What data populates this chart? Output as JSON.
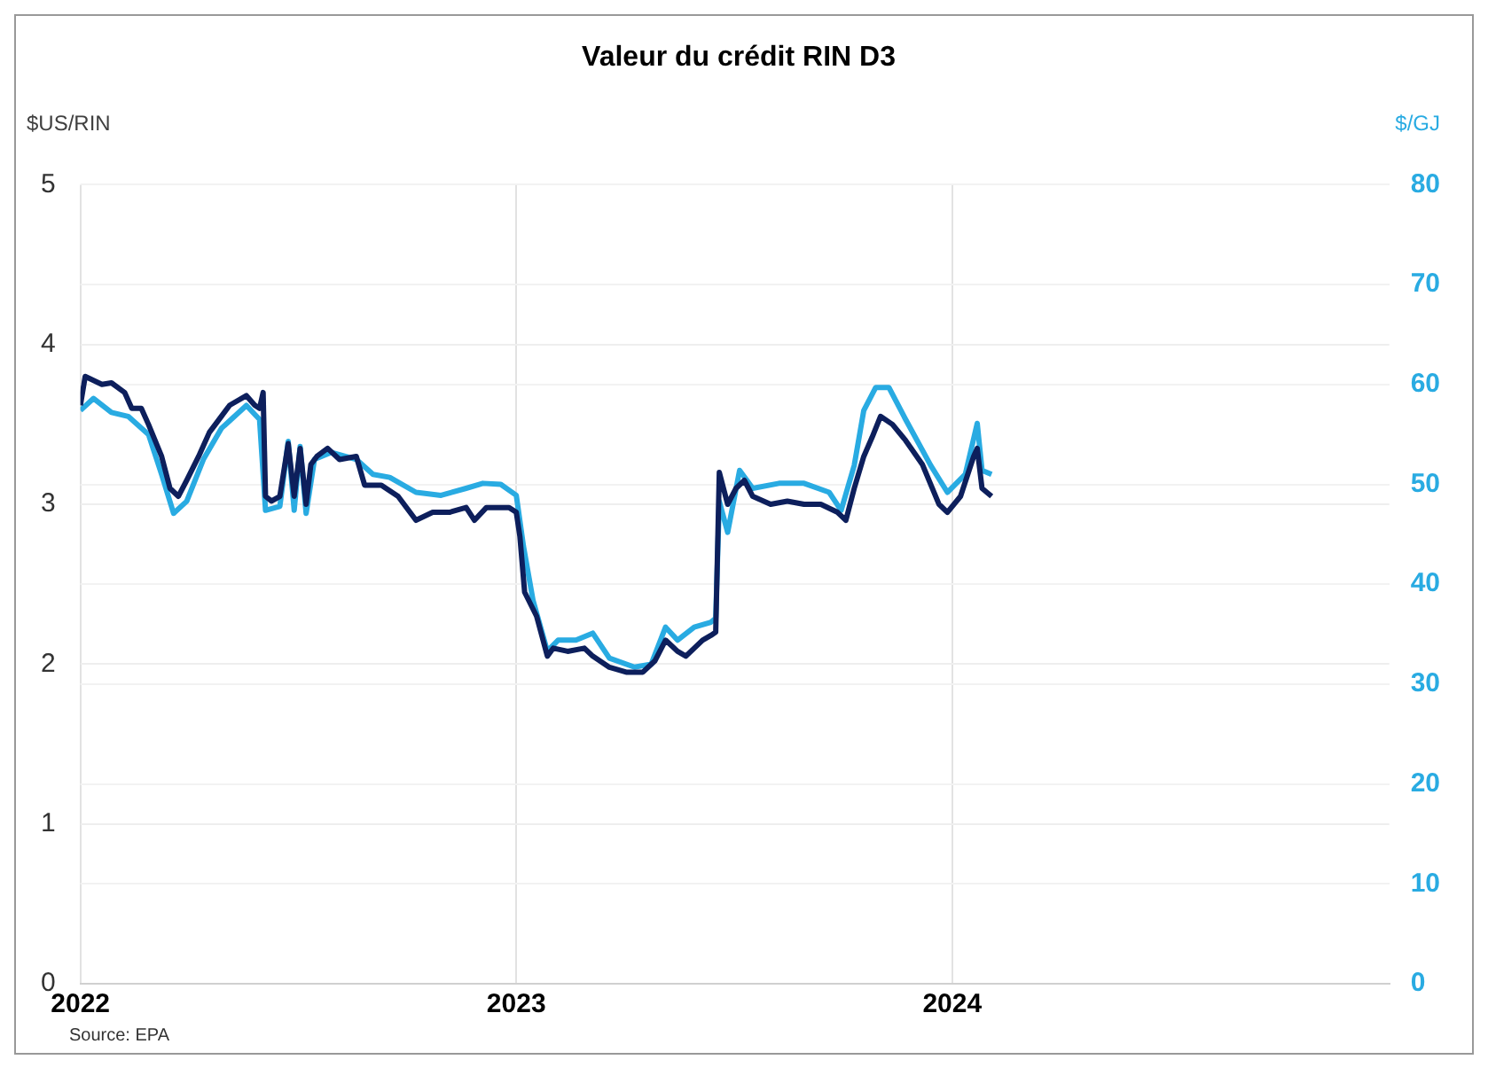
{
  "chart_data": {
    "type": "line",
    "title": "Valeur du crédit RIN D3",
    "ylabel": "$US/RIN",
    "y2label": "$/GJ",
    "xlim": [
      "2022-01-01",
      "2025-01-01"
    ],
    "xticks": [
      {
        "value": "2022-01-01",
        "label": "2022"
      },
      {
        "value": "2023-01-01",
        "label": "2023"
      },
      {
        "value": "2024-01-01",
        "label": "2024"
      }
    ],
    "ylim": [
      0,
      5
    ],
    "yticks": [
      0,
      1,
      2,
      3,
      4,
      5
    ],
    "y2lim": [
      0,
      80
    ],
    "y2ticks": [
      0,
      10,
      20,
      30,
      40,
      50,
      60,
      70,
      80
    ],
    "grid": true,
    "legend": false,
    "marker": "none",
    "line_style": "solid",
    "series": [
      {
        "color": "#0d1f5c",
        "x": [
          "2022-01-01",
          "2022-01-05",
          "2022-01-19",
          "2022-01-27",
          "2022-02-07",
          "2022-02-13",
          "2022-02-21",
          "2022-02-27",
          "2022-03-10",
          "2022-03-17",
          "2022-03-24",
          "2022-03-31",
          "2022-04-10",
          "2022-04-19",
          "2022-04-29",
          "2022-05-06",
          "2022-05-20",
          "2022-05-27",
          "2022-05-31",
          "2022-06-03",
          "2022-06-05",
          "2022-06-10",
          "2022-06-17",
          "2022-06-24",
          "2022-06-29",
          "2022-07-04",
          "2022-07-09",
          "2022-07-13",
          "2022-07-18",
          "2022-07-27",
          "2022-08-06",
          "2022-08-20",
          "2022-08-27",
          "2022-09-10",
          "2022-09-24",
          "2022-10-09",
          "2022-10-23",
          "2022-11-06",
          "2022-11-20",
          "2022-11-27",
          "2022-12-07",
          "2022-12-26",
          "2023-01-01",
          "2023-01-04",
          "2023-01-08",
          "2023-01-18",
          "2023-01-27",
          "2023-02-01",
          "2023-02-13",
          "2023-02-27",
          "2023-03-06",
          "2023-03-20",
          "2023-04-03",
          "2023-04-17",
          "2023-04-27",
          "2023-05-06",
          "2023-05-16",
          "2023-05-23",
          "2023-05-30",
          "2023-06-06",
          "2023-06-13",
          "2023-06-17",
          "2023-06-20",
          "2023-06-27",
          "2023-07-04",
          "2023-07-11",
          "2023-07-18",
          "2023-08-02",
          "2023-08-16",
          "2023-08-30",
          "2023-09-13",
          "2023-09-27",
          "2023-10-04",
          "2023-10-11",
          "2023-10-19",
          "2023-10-26",
          "2023-11-02",
          "2023-11-12",
          "2023-11-23",
          "2023-12-07",
          "2023-12-21",
          "2023-12-28",
          "2024-01-08",
          "2024-01-19",
          "2024-01-22",
          "2024-01-26",
          "2024-02-03"
        ],
        "values": [
          3.62,
          3.8,
          3.75,
          3.76,
          3.7,
          3.6,
          3.6,
          3.5,
          3.3,
          3.1,
          3.05,
          3.15,
          3.3,
          3.45,
          3.55,
          3.62,
          3.68,
          3.62,
          3.6,
          3.7,
          3.05,
          3.02,
          3.05,
          3.38,
          3.05,
          3.35,
          3.0,
          3.25,
          3.3,
          3.35,
          3.28,
          3.3,
          3.12,
          3.12,
          3.05,
          2.9,
          2.95,
          2.95,
          2.98,
          2.9,
          2.98,
          2.98,
          2.95,
          2.8,
          2.45,
          2.3,
          2.05,
          2.1,
          2.08,
          2.1,
          2.05,
          1.98,
          1.95,
          1.95,
          2.02,
          2.15,
          2.08,
          2.05,
          2.1,
          2.15,
          2.18,
          2.2,
          3.2,
          3.0,
          3.1,
          3.15,
          3.05,
          3.0,
          3.02,
          3.0,
          3.0,
          2.95,
          2.9,
          3.1,
          3.3,
          3.42,
          3.55,
          3.5,
          3.4,
          3.25,
          3.0,
          2.95,
          3.05,
          3.3,
          3.35,
          3.1,
          3.05
        ]
      },
      {
        "color": "#29abe2",
        "axis": "y2",
        "x": [
          "2022-01-01",
          "2022-01-12",
          "2022-01-27",
          "2022-02-10",
          "2022-02-27",
          "2022-03-10",
          "2022-03-20",
          "2022-03-31",
          "2022-04-14",
          "2022-04-29",
          "2022-05-20",
          "2022-05-31",
          "2022-06-05",
          "2022-06-17",
          "2022-06-24",
          "2022-06-29",
          "2022-07-04",
          "2022-07-09",
          "2022-07-16",
          "2022-07-30",
          "2022-08-20",
          "2022-09-03",
          "2022-09-17",
          "2022-10-09",
          "2022-10-30",
          "2022-11-20",
          "2022-12-04",
          "2022-12-19",
          "2023-01-01",
          "2023-01-07",
          "2023-01-15",
          "2023-01-27",
          "2023-02-05",
          "2023-02-20",
          "2023-03-06",
          "2023-03-20",
          "2023-04-10",
          "2023-04-24",
          "2023-05-06",
          "2023-05-16",
          "2023-05-30",
          "2023-06-13",
          "2023-06-17",
          "2023-06-20",
          "2023-06-27",
          "2023-07-07",
          "2023-07-18",
          "2023-08-09",
          "2023-08-30",
          "2023-09-20",
          "2023-09-30",
          "2023-10-11",
          "2023-10-19",
          "2023-10-29",
          "2023-11-09",
          "2023-11-23",
          "2023-12-14",
          "2023-12-28",
          "2024-01-12",
          "2024-01-22",
          "2024-01-26",
          "2024-02-03"
        ],
        "values": [
          57.4,
          58.6,
          57.2,
          56.8,
          55.0,
          51.0,
          47.1,
          48.3,
          52.5,
          55.6,
          57.9,
          56.5,
          47.4,
          47.8,
          54.3,
          47.4,
          53.8,
          47.1,
          52.5,
          53.2,
          52.5,
          51.0,
          50.7,
          49.2,
          48.9,
          49.6,
          50.1,
          50.0,
          48.9,
          43.8,
          38.4,
          33.3,
          34.4,
          34.4,
          35.1,
          32.6,
          31.7,
          32.0,
          35.7,
          34.4,
          35.7,
          36.2,
          36.6,
          48.3,
          45.2,
          51.4,
          49.6,
          50.1,
          50.1,
          49.2,
          47.4,
          51.9,
          57.4,
          59.7,
          59.7,
          56.5,
          51.9,
          49.2,
          51.0,
          56.1,
          51.4,
          51.0
        ]
      }
    ],
    "annotations": [
      "Source: EPA"
    ]
  }
}
